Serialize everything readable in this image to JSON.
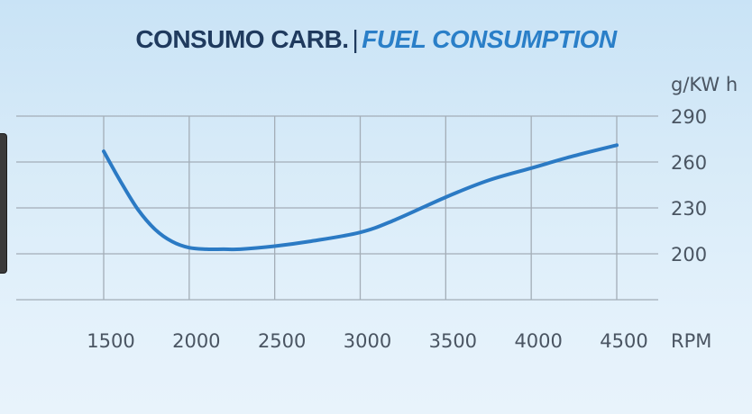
{
  "title": {
    "main": "CONSUMO CARB.",
    "separator": "|",
    "subtitle": "FUEL CONSUMPTION"
  },
  "colors": {
    "title_main": "#1f3a5e",
    "title_sub": "#2a7fc8",
    "curve": "#2b7ac4",
    "grid": "#a3adb7",
    "tick_text": "#4a5562"
  },
  "chart_data": {
    "type": "line",
    "title": "CONSUMO CARB. | FUEL CONSUMPTION",
    "xlabel": "RPM",
    "ylabel": "g/KW h",
    "x_ticks": [
      1500,
      2000,
      2500,
      3000,
      3500,
      4000,
      4500
    ],
    "y_ticks": [
      200,
      230,
      260,
      290
    ],
    "xlim": [
      1500,
      4500
    ],
    "ylim": [
      170,
      290
    ],
    "grid": true,
    "series": [
      {
        "x": [
          1500,
          1600,
          1700,
          1800,
          1900,
          2000,
          2100,
          2200,
          2300,
          2500,
          2700,
          3000,
          3200,
          3500,
          3750,
          4000,
          4250,
          4500
        ],
        "y": [
          267,
          247,
          229,
          216,
          208,
          204,
          203,
          203,
          203,
          205,
          208,
          214,
          222,
          237,
          248,
          256,
          264,
          271
        ]
      }
    ]
  }
}
